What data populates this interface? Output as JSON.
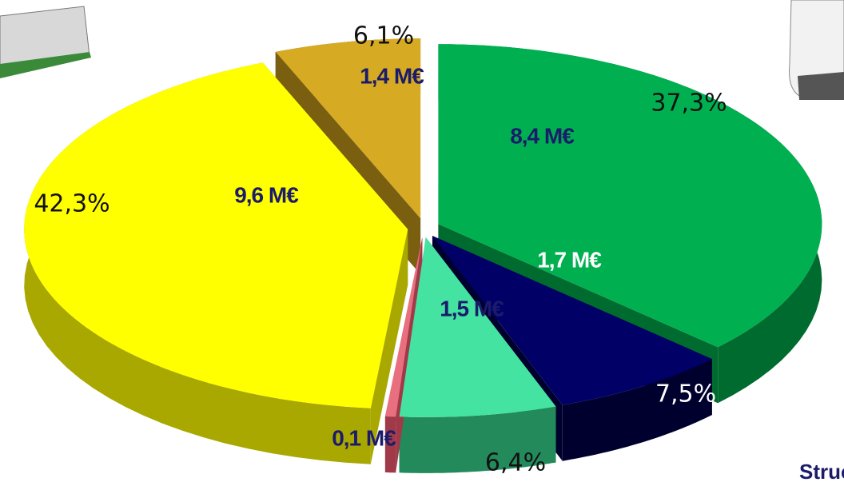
{
  "chart_data": {
    "type": "pie3d",
    "values": [
      8.4,
      1.7,
      1.5,
      0.1,
      9.6,
      1.4
    ],
    "value_labels": [
      "8,4 M€",
      "1,7 M€",
      "1,5 M€",
      "0,1 M€",
      "9,6 M€",
      "1,4 M€"
    ],
    "percents": [
      37.3,
      7.5,
      6.4,
      0.4,
      42.3,
      6.1
    ],
    "percent_labels": [
      "37,3%",
      "7,5%",
      "6,4%",
      null,
      "42,3%",
      "6,1%"
    ],
    "colors": [
      "#00b050",
      "#000066",
      "#44e3a2",
      "#e8707e",
      "#ffff00",
      "#d6aa22"
    ],
    "side_colors": [
      "#006b2e",
      "#00002e",
      "#238a5c",
      "#a03a48",
      "#a8a800",
      "#7a5f10"
    ],
    "annotation": "Struct"
  }
}
